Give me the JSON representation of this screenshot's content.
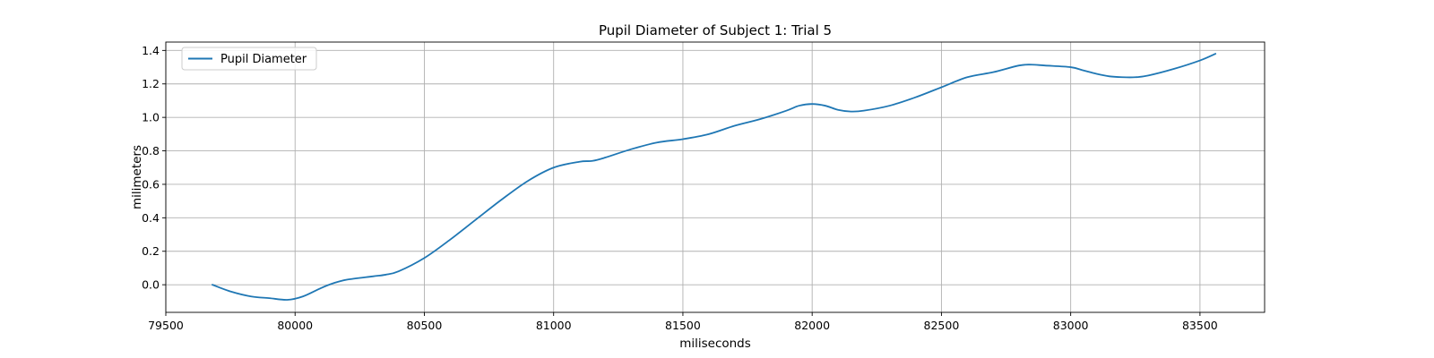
{
  "chart_data": {
    "type": "line",
    "title": "Pupil Diameter of Subject 1: Trial 5",
    "xlabel": "miliseconds",
    "ylabel": "milimeters",
    "xlim": [
      79500,
      83750
    ],
    "ylim": [
      -0.165,
      1.45
    ],
    "xticks": [
      79500,
      80000,
      80500,
      81000,
      81500,
      82000,
      82500,
      83000,
      83500
    ],
    "yticks": [
      0.0,
      0.2,
      0.4,
      0.6,
      0.8,
      1.0,
      1.2,
      1.4
    ],
    "xtick_labels": [
      "79500",
      "80000",
      "80500",
      "81000",
      "81500",
      "82000",
      "82500",
      "83000",
      "83500"
    ],
    "ytick_labels": [
      "0.0",
      "0.2",
      "0.4",
      "0.6",
      "0.8",
      "1.0",
      "1.2",
      "1.4"
    ],
    "grid": true,
    "legend": {
      "position": "top-left"
    },
    "series": [
      {
        "name": "Pupil Diameter",
        "color": "#1f77b4",
        "x": [
          79680,
          79750,
          79830,
          79900,
          79970,
          80030,
          80100,
          80150,
          80200,
          80300,
          80350,
          80400,
          80500,
          80600,
          80700,
          80800,
          80900,
          81000,
          81100,
          81150,
          81200,
          81300,
          81400,
          81500,
          81600,
          81700,
          81800,
          81900,
          81950,
          82000,
          82050,
          82100,
          82150,
          82200,
          82300,
          82400,
          82500,
          82600,
          82700,
          82800,
          82850,
          82900,
          83000,
          83050,
          83100,
          83150,
          83200,
          83250,
          83300,
          83400,
          83500,
          83560
        ],
        "y": [
          0.0,
          -0.04,
          -0.07,
          -0.08,
          -0.09,
          -0.07,
          -0.02,
          0.01,
          0.03,
          0.05,
          0.06,
          0.08,
          0.16,
          0.27,
          0.39,
          0.51,
          0.62,
          0.7,
          0.735,
          0.74,
          0.76,
          0.81,
          0.85,
          0.87,
          0.9,
          0.95,
          0.99,
          1.04,
          1.07,
          1.08,
          1.07,
          1.045,
          1.035,
          1.04,
          1.07,
          1.12,
          1.18,
          1.24,
          1.27,
          1.31,
          1.315,
          1.31,
          1.3,
          1.28,
          1.26,
          1.245,
          1.24,
          1.24,
          1.25,
          1.29,
          1.34,
          1.38
        ]
      }
    ]
  }
}
